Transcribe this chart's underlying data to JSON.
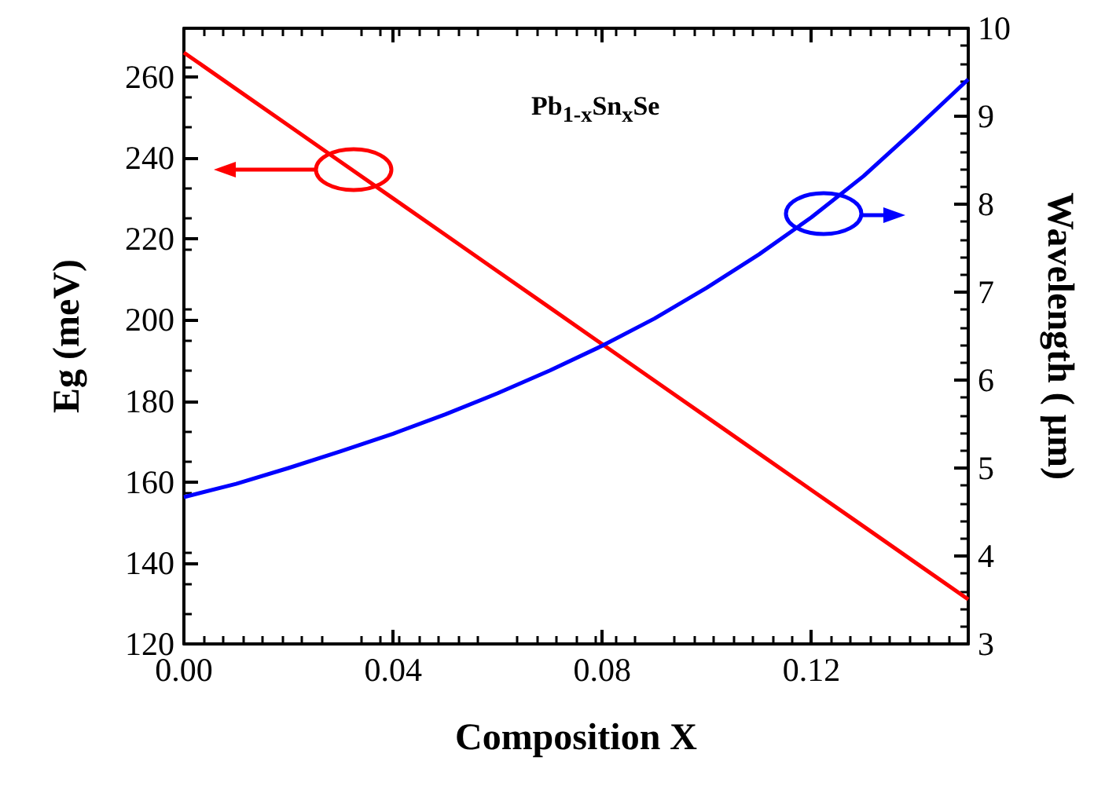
{
  "chart_data": {
    "type": "line",
    "xlabel": "Composition X",
    "ylabel": "Eg (meV)",
    "y2label": "Wavelength ( μm)",
    "annotations": [
      "Pb$_{1-x}$Sn$_{x}$Se"
    ],
    "x": [
      0,
      0.01,
      0.02,
      0.03,
      0.04,
      0.05,
      0.06,
      0.07,
      0.08,
      0.09,
      0.1,
      0.11,
      0.12,
      0.13,
      0.14,
      0.15
    ],
    "series": [
      {
        "color": "#ff0000",
        "values": [
          266,
          257,
          248,
          239,
          230,
          221,
          212,
          203,
          194,
          185,
          176,
          167,
          158,
          149,
          140,
          131
        ]
      },
      {
        "color": "#0000ff",
        "axis": "y2",
        "values": [
          4.67,
          4.82,
          5.0,
          5.19,
          5.39,
          5.61,
          5.85,
          6.11,
          6.39,
          6.7,
          7.05,
          7.43,
          7.85,
          8.32,
          8.86,
          9.42
        ]
      }
    ],
    "xlim": [
      0,
      0.15
    ],
    "xticks": [
      {
        "value": 0,
        "label": "0.00"
      },
      0.04,
      0.08,
      0.12
    ],
    "ylim": [
      120,
      272
    ],
    "yticks": [
      120,
      140,
      160,
      180,
      200,
      220,
      240,
      260
    ],
    "y2lim": [
      3,
      10
    ],
    "y2ticks": [
      3,
      4,
      5,
      6,
      7,
      8,
      9,
      10
    ],
    "grid": false,
    "marker": "none",
    "line_style": "solid"
  }
}
